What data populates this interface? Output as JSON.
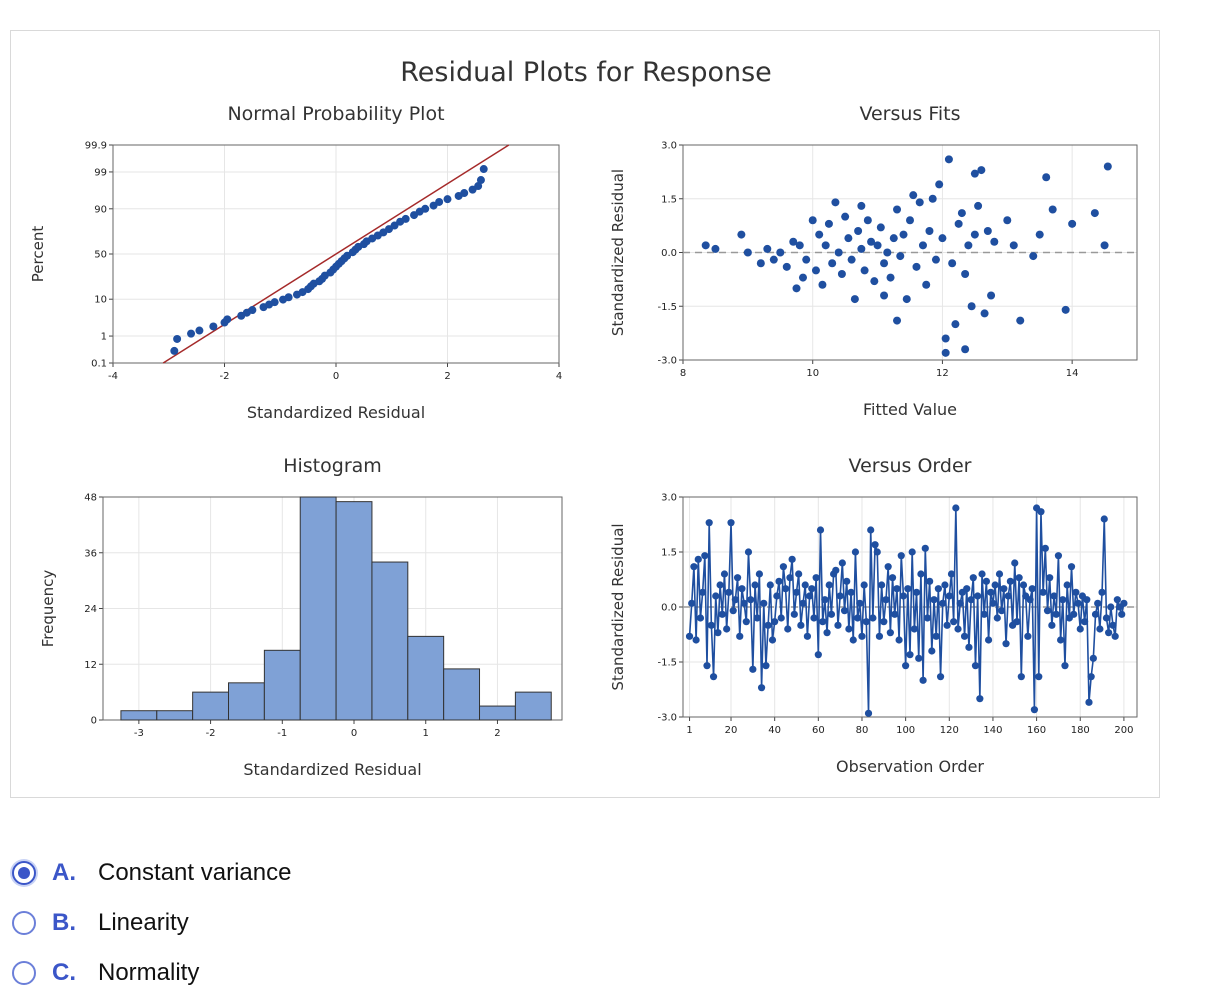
{
  "figure": {
    "title": "Residual Plots for Response"
  },
  "colors": {
    "point": "#1f4fa0",
    "line": "#1f4fa0",
    "fit_line": "#a52a2a",
    "bar_fill": "#7fa1d6",
    "bar_edge": "#333333",
    "grid": "#e6e6e6",
    "ref_line": "#999999"
  },
  "chart_data": [
    {
      "type": "scatter",
      "title": "Normal Probability Plot",
      "xlabel": "Standardized Residual",
      "ylabel": "Percent",
      "xlim": [
        -4,
        4
      ],
      "xticks": [
        -4,
        -2,
        0,
        2,
        4
      ],
      "yticks": [
        0.1,
        1,
        10,
        50,
        90,
        99,
        99.9
      ],
      "yscale": "probability",
      "fit_line": [
        [
          -3.1,
          0.1
        ],
        [
          3.1,
          99.9
        ]
      ],
      "grid": true,
      "points": [
        [
          -2.9,
          0.3
        ],
        [
          -2.85,
          0.8
        ],
        [
          -2.6,
          1.2
        ],
        [
          -2.45,
          1.5
        ],
        [
          -2.2,
          2
        ],
        [
          -2.0,
          2.6
        ],
        [
          -1.95,
          3.2
        ],
        [
          -1.7,
          4
        ],
        [
          -1.6,
          4.8
        ],
        [
          -1.5,
          5.6
        ],
        [
          -1.3,
          6.6
        ],
        [
          -1.2,
          7.6
        ],
        [
          -1.1,
          8.6
        ],
        [
          -0.95,
          9.8
        ],
        [
          -0.85,
          11
        ],
        [
          -0.7,
          12.5
        ],
        [
          -0.6,
          14
        ],
        [
          -0.5,
          16
        ],
        [
          -0.45,
          18
        ],
        [
          -0.4,
          20
        ],
        [
          -0.3,
          22
        ],
        [
          -0.25,
          24
        ],
        [
          -0.2,
          27
        ],
        [
          -0.1,
          30
        ],
        [
          -0.05,
          33
        ],
        [
          0.0,
          36
        ],
        [
          0.05,
          39
        ],
        [
          0.1,
          42
        ],
        [
          0.15,
          45
        ],
        [
          0.2,
          48
        ],
        [
          0.3,
          52
        ],
        [
          0.35,
          55
        ],
        [
          0.4,
          58
        ],
        [
          0.5,
          61
        ],
        [
          0.55,
          64
        ],
        [
          0.65,
          67
        ],
        [
          0.75,
          70
        ],
        [
          0.85,
          73
        ],
        [
          0.95,
          76
        ],
        [
          1.05,
          79
        ],
        [
          1.15,
          82
        ],
        [
          1.25,
          84
        ],
        [
          1.4,
          86.5
        ],
        [
          1.5,
          88.5
        ],
        [
          1.6,
          90
        ],
        [
          1.75,
          91.5
        ],
        [
          1.85,
          93
        ],
        [
          2.0,
          94
        ],
        [
          2.2,
          95
        ],
        [
          2.3,
          95.8
        ],
        [
          2.45,
          96.6
        ],
        [
          2.55,
          97.3
        ],
        [
          2.6,
          98.2
        ],
        [
          2.65,
          99.2
        ]
      ]
    },
    {
      "type": "scatter",
      "title": "Versus Fits",
      "xlabel": "Fitted Value",
      "ylabel": "Standardized Residual",
      "xlim": [
        8,
        15
      ],
      "ylim": [
        -3.0,
        3.0
      ],
      "xticks": [
        8,
        10,
        12,
        14
      ],
      "yticks": [
        -3.0,
        -1.5,
        0.0,
        1.5,
        3.0
      ],
      "reference_line": 0,
      "grid": true,
      "points": [
        [
          8.35,
          0.2
        ],
        [
          8.5,
          0.1
        ],
        [
          8.9,
          0.5
        ],
        [
          9.0,
          0.0
        ],
        [
          9.2,
          -0.3
        ],
        [
          9.3,
          0.1
        ],
        [
          9.4,
          -0.2
        ],
        [
          9.5,
          0.0
        ],
        [
          9.6,
          -0.4
        ],
        [
          9.7,
          0.3
        ],
        [
          9.75,
          -1.0
        ],
        [
          9.8,
          0.2
        ],
        [
          9.85,
          -0.7
        ],
        [
          9.9,
          -0.2
        ],
        [
          10.0,
          0.9
        ],
        [
          10.05,
          -0.5
        ],
        [
          10.1,
          0.5
        ],
        [
          10.15,
          -0.9
        ],
        [
          10.2,
          0.2
        ],
        [
          10.25,
          0.8
        ],
        [
          10.3,
          -0.3
        ],
        [
          10.35,
          1.4
        ],
        [
          10.4,
          0.0
        ],
        [
          10.45,
          -0.6
        ],
        [
          10.5,
          1.0
        ],
        [
          10.55,
          0.4
        ],
        [
          10.6,
          -0.2
        ],
        [
          10.65,
          -1.3
        ],
        [
          10.7,
          0.6
        ],
        [
          10.75,
          0.1
        ],
        [
          10.8,
          -0.5
        ],
        [
          10.85,
          0.9
        ],
        [
          10.9,
          0.3
        ],
        [
          10.95,
          -0.8
        ],
        [
          11.0,
          0.2
        ],
        [
          11.05,
          0.7
        ],
        [
          11.1,
          -0.3
        ],
        [
          11.15,
          0.0
        ],
        [
          11.2,
          -0.7
        ],
        [
          11.25,
          0.4
        ],
        [
          11.3,
          1.2
        ],
        [
          11.35,
          -0.1
        ],
        [
          11.4,
          0.5
        ],
        [
          11.45,
          -1.3
        ],
        [
          11.5,
          0.9
        ],
        [
          11.55,
          1.6
        ],
        [
          11.6,
          -0.4
        ],
        [
          11.65,
          1.4
        ],
        [
          11.7,
          0.2
        ],
        [
          11.75,
          -0.9
        ],
        [
          11.8,
          0.6
        ],
        [
          11.85,
          1.5
        ],
        [
          11.9,
          -0.2
        ],
        [
          11.95,
          1.9
        ],
        [
          12.0,
          0.4
        ],
        [
          12.05,
          -2.4
        ],
        [
          12.1,
          2.6
        ],
        [
          12.15,
          -0.3
        ],
        [
          12.2,
          -2.0
        ],
        [
          12.25,
          0.8
        ],
        [
          12.3,
          1.1
        ],
        [
          12.35,
          -0.6
        ],
        [
          12.4,
          0.2
        ],
        [
          12.45,
          -1.5
        ],
        [
          12.5,
          0.5
        ],
        [
          12.55,
          1.3
        ],
        [
          12.6,
          2.3
        ],
        [
          12.65,
          -1.7
        ],
        [
          12.7,
          0.6
        ],
        [
          12.75,
          -1.2
        ],
        [
          12.8,
          0.3
        ],
        [
          13.0,
          0.9
        ],
        [
          13.1,
          0.2
        ],
        [
          13.2,
          -1.9
        ],
        [
          13.4,
          -0.1
        ],
        [
          13.5,
          0.5
        ],
        [
          13.6,
          2.1
        ],
        [
          13.7,
          1.2
        ],
        [
          13.9,
          -1.6
        ],
        [
          14.0,
          0.8
        ],
        [
          14.35,
          1.1
        ],
        [
          14.5,
          0.2
        ],
        [
          14.55,
          2.4
        ],
        [
          12.05,
          -2.8
        ],
        [
          12.35,
          -2.7
        ],
        [
          11.3,
          -1.9
        ],
        [
          11.1,
          -1.2
        ],
        [
          10.75,
          1.3
        ],
        [
          12.5,
          2.2
        ]
      ]
    },
    {
      "type": "bar",
      "title": "Histogram",
      "xlabel": "Standardized Residual",
      "ylabel": "Frequency",
      "xlim": [
        -3.5,
        2.9
      ],
      "ylim": [
        0,
        48
      ],
      "xticks": [
        -3,
        -2,
        -1,
        0,
        1,
        2
      ],
      "yticks": [
        0,
        12,
        24,
        36,
        48
      ],
      "bin_width": 0.5,
      "bin_starts": [
        -3.25,
        -2.75,
        -2.25,
        -1.75,
        -1.25,
        -0.75,
        -0.25,
        0.25,
        0.75,
        1.25,
        1.75,
        2.25
      ],
      "values": [
        2,
        2,
        6,
        8,
        15,
        48,
        47,
        34,
        18,
        11,
        3,
        6
      ],
      "grid": true
    },
    {
      "type": "line",
      "title": "Versus Order",
      "xlabel": "Observation Order",
      "ylabel": "Standardized Residual",
      "xlim": [
        -2,
        206
      ],
      "ylim": [
        -3.0,
        3.0
      ],
      "xticks": [
        1,
        20,
        40,
        60,
        80,
        100,
        120,
        140,
        160,
        180,
        200
      ],
      "yticks": [
        -3.0,
        -1.5,
        0.0,
        1.5,
        3.0
      ],
      "reference_line": 0,
      "grid": true,
      "y": [
        -0.8,
        0.1,
        1.1,
        -0.9,
        1.3,
        -0.3,
        0.4,
        1.4,
        -1.6,
        2.3,
        -0.5,
        -1.9,
        0.3,
        -0.7,
        0.6,
        -0.2,
        0.9,
        -0.6,
        0.4,
        2.3,
        -0.1,
        0.2,
        0.8,
        -0.8,
        0.5,
        0.1,
        -0.4,
        1.5,
        0.2,
        -1.7,
        0.6,
        -0.3,
        0.9,
        -2.2,
        0.1,
        -1.6,
        -0.5,
        0.6,
        -0.9,
        -0.4,
        0.3,
        0.7,
        -0.3,
        1.1,
        0.5,
        -0.6,
        0.8,
        1.3,
        -0.2,
        0.4,
        0.9,
        -0.5,
        0.1,
        0.6,
        -0.8,
        0.3,
        0.5,
        -0.3,
        0.8,
        -1.3,
        2.1,
        -0.4,
        0.2,
        -0.7,
        0.6,
        -0.2,
        0.9,
        1.0,
        -0.5,
        0.3,
        1.2,
        -0.1,
        0.7,
        -0.6,
        0.4,
        -0.9,
        1.5,
        -0.3,
        0.1,
        -0.8,
        0.6,
        -0.4,
        -2.9,
        2.1,
        -0.3,
        1.7,
        1.5,
        -0.8,
        0.6,
        -0.4,
        0.2,
        1.1,
        -0.7,
        0.8,
        -0.2,
        0.5,
        -0.9,
        1.4,
        0.3,
        -1.6,
        0.5,
        -1.3,
        1.5,
        -0.6,
        0.4,
        -1.4,
        0.9,
        -2.0,
        1.6,
        -0.3,
        0.7,
        -1.2,
        0.2,
        -0.8,
        0.5,
        -1.9,
        0.1,
        0.6,
        -0.5,
        0.3,
        0.9,
        -0.4,
        2.7,
        -0.6,
        0.1,
        0.4,
        -0.8,
        0.5,
        -1.1,
        0.2,
        0.8,
        -1.6,
        0.3,
        -2.5,
        0.9,
        -0.2,
        0.7,
        -0.9,
        0.4,
        0.1,
        0.6,
        -0.3,
        0.9,
        -0.1,
        0.5,
        -1.0,
        0.3,
        0.7,
        -0.5,
        1.2,
        -0.4,
        0.8,
        -1.9,
        0.6,
        0.3,
        -0.8,
        0.2,
        0.5,
        -2.8,
        2.7,
        -1.9,
        2.6,
        0.4,
        1.6,
        -0.1,
        0.8,
        -0.5,
        0.3,
        -0.2,
        1.4,
        -0.9,
        0.2,
        -1.6,
        0.6,
        -0.3,
        1.1,
        -0.2,
        0.4,
        0.1,
        -0.6,
        0.3,
        -0.4,
        0.2,
        -2.6,
        -1.9,
        -1.4,
        -0.2,
        0.1,
        -0.6,
        0.4,
        2.4,
        -0.3,
        -0.7,
        0.0,
        -0.5,
        -0.8,
        0.2,
        0.0,
        -0.2,
        0.1
      ]
    }
  ],
  "question": {
    "options": [
      {
        "letter": "A.",
        "text": "Constant variance",
        "selected": true
      },
      {
        "letter": "B.",
        "text": "Linearity",
        "selected": false
      },
      {
        "letter": "C.",
        "text": "Normality",
        "selected": false
      }
    ]
  }
}
